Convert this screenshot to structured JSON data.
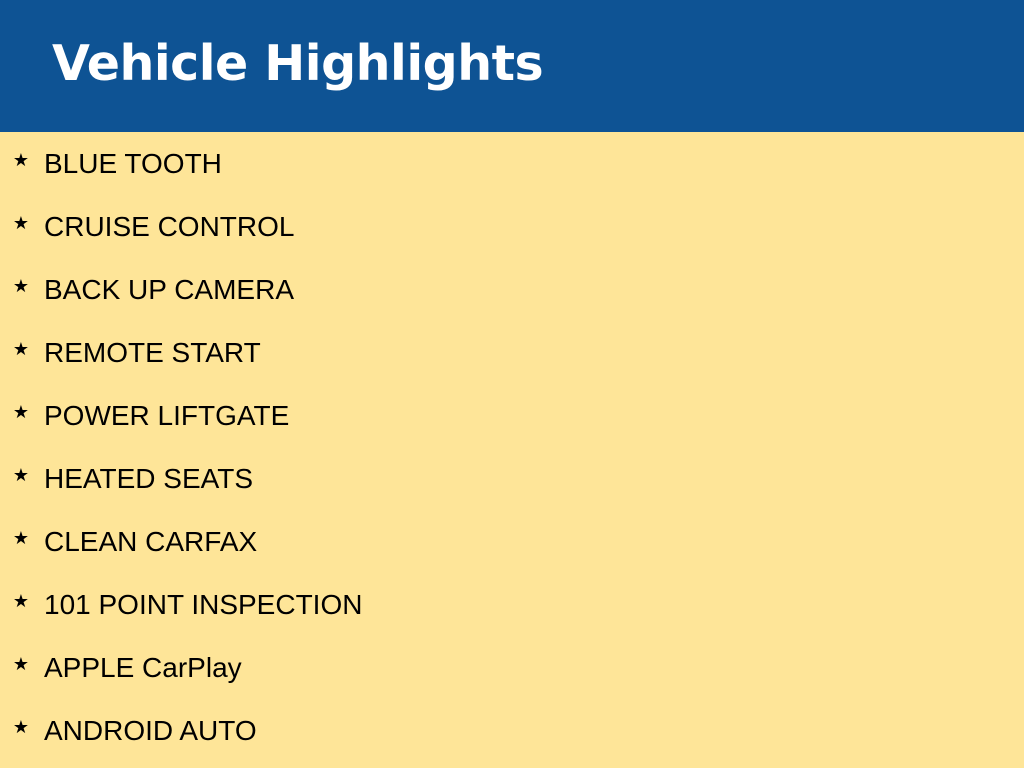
{
  "header": {
    "title": "Vehicle Highlights"
  },
  "colors": {
    "header_background": "#0e5394",
    "page_background": "#fee598",
    "header_text": "#ffffff",
    "list_text": "#000000"
  },
  "highlights": {
    "bullet_icon": "star-icon",
    "items": [
      {
        "label": "BLUE TOOTH"
      },
      {
        "label": "CRUISE CONTROL"
      },
      {
        "label": "BACK UP CAMERA"
      },
      {
        "label": "REMOTE START"
      },
      {
        "label": "POWER LIFTGATE"
      },
      {
        "label": "HEATED SEATS"
      },
      {
        "label": "CLEAN CARFAX"
      },
      {
        "label": "101 POINT INSPECTION"
      },
      {
        "label": "APPLE CarPlay"
      },
      {
        "label": "ANDROID AUTO"
      }
    ]
  }
}
